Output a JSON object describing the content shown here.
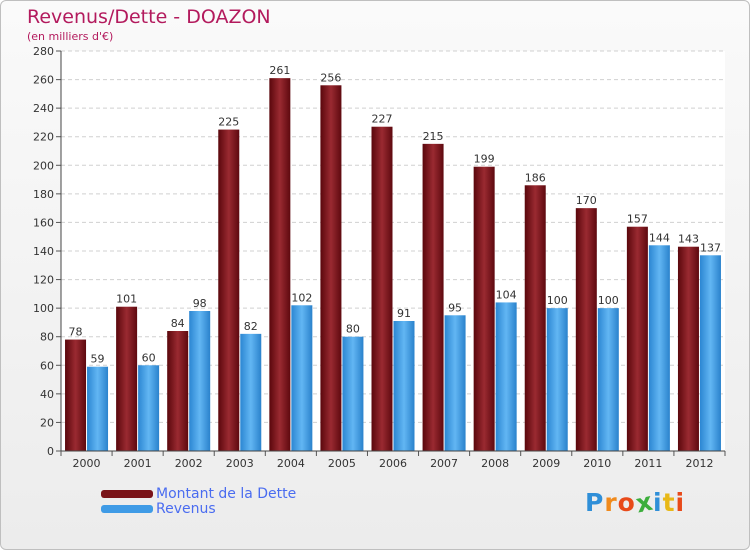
{
  "chart_data": {
    "type": "bar",
    "title": "Revenus/Dette - DOAZON",
    "subtitle": "(en milliers d'€)",
    "categories": [
      "2000",
      "2001",
      "2002",
      "2003",
      "2004",
      "2005",
      "2006",
      "2007",
      "2008",
      "2009",
      "2010",
      "2011",
      "2012"
    ],
    "series": [
      {
        "name": "Montant de la Dette",
        "color": "#7a1318",
        "values": [
          78,
          101,
          84,
          225,
          261,
          256,
          227,
          215,
          199,
          186,
          170,
          157,
          143
        ]
      },
      {
        "name": "Revenus",
        "color": "#3f9be6",
        "values": [
          59,
          60,
          98,
          82,
          102,
          80,
          91,
          95,
          104,
          100,
          100,
          144,
          137
        ]
      }
    ],
    "ylim": [
      0,
      280
    ],
    "ytick_step": 20,
    "grid": true,
    "legend_position": "bottom-left",
    "data_labels": true
  },
  "logo": {
    "letters": [
      "P",
      "r",
      "o",
      "x",
      "i",
      "t",
      "i"
    ],
    "colors": [
      "#2f8fd8",
      "#f08a1c",
      "#e84a1a",
      "#3cae3c",
      "#2f8fd8",
      "#e8b817",
      "#e84a1a"
    ]
  }
}
